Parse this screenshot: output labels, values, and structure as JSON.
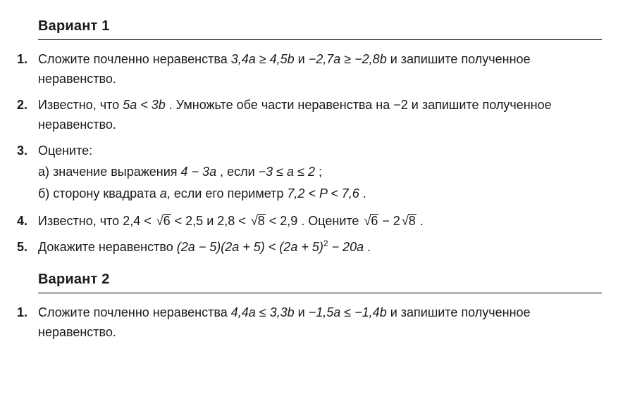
{
  "variant1": {
    "title": "Вариант 1",
    "items": {
      "1": {
        "num": "1.",
        "t1": "Сложите почленно неравенства ",
        "f1": "3,4a ≥ 4,5b",
        "t2": " и ",
        "f2": "−2,7a ≥ −2,8b",
        "t3": " и за­пишите полученное неравенство."
      },
      "2": {
        "num": "2.",
        "t1": "Известно, что ",
        "f1": "5a < 3b",
        "t2": " . Умножьте обе части неравенства на ",
        "f2": "−2",
        "t3": " и за­пишите полученное неравенство."
      },
      "3": {
        "num": "3.",
        "t1": "Оцените:",
        "a_lead": "а) значение выражения ",
        "a_f1": "4 − 3a",
        "a_mid": " , если ",
        "a_f2": "−3 ≤ a ≤ 2",
        "a_end": " ;",
        "b_lead": "б) сторону квадрата ",
        "b_var": "a",
        "b_mid": ", если его периметр ",
        "b_f": "7,2 < P < 7,6",
        "b_end": " ."
      },
      "4": {
        "num": "4.",
        "t1": "Известно, что ",
        "f1a": "2,4 < ",
        "r1": "6",
        "f1b": " < 2,5",
        "t2": " и ",
        "f2a": "2,8 < ",
        "r2": "8",
        "f2b": " < 2,9",
        "t3": " . Оцените ",
        "r3": "6",
        "f3mid": " − 2",
        "r4": "8",
        "t4": " ."
      },
      "5": {
        "num": "5.",
        "t1": "Докажите неравенство ",
        "lhs": "(2a − 5)(2a + 5) < (2a + 5)",
        "exp": "2",
        "rhs": " − 20a",
        "t2": " ."
      }
    }
  },
  "variant2": {
    "title": "Вариант 2",
    "items": {
      "1": {
        "num": "1.",
        "t1": "Сложите почленно неравенства ",
        "f1": "4,4a ≤ 3,3b",
        "t2": " и ",
        "f2": "−1,5a ≤ −1,4b",
        "t3": " и за­пишите полученное неравенство."
      }
    }
  }
}
